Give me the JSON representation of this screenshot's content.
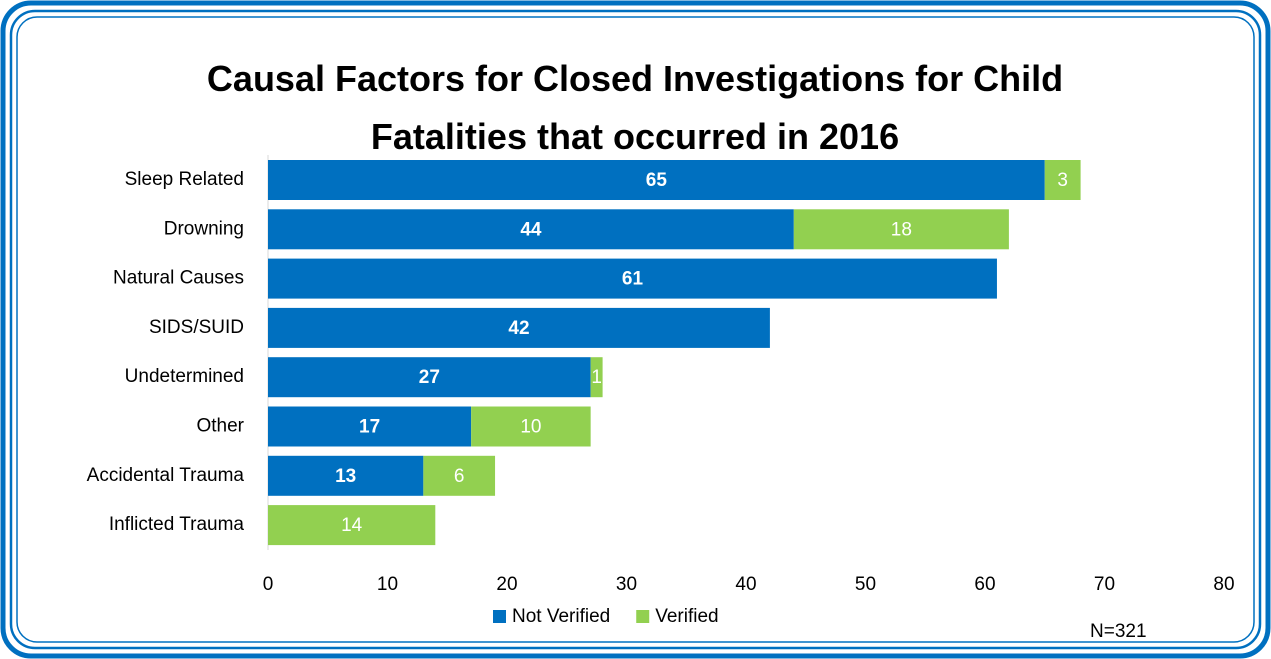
{
  "chart_data": {
    "type": "stacked_bar_horizontal",
    "title": "Causal Factors for Closed Investigations for Child Fatalities that occurred in 2016",
    "categories": [
      "Sleep Related",
      "Drowning",
      "Natural Causes",
      "SIDS/SUID",
      "Undetermined",
      "Other",
      "Accidental Trauma",
      "Inflicted Trauma"
    ],
    "series": [
      {
        "name": "Not Verified",
        "color": "#0070c0",
        "values": [
          65,
          44,
          61,
          42,
          27,
          17,
          13,
          null
        ]
      },
      {
        "name": "Verified",
        "color": "#92d050",
        "values": [
          3,
          18,
          null,
          null,
          1,
          10,
          6,
          14
        ]
      }
    ],
    "xlim": [
      0,
      80
    ],
    "xticks": [
      0,
      10,
      20,
      30,
      40,
      50,
      60,
      70,
      80
    ],
    "grid": false,
    "legend": "bottom",
    "annotation": "N=321"
  }
}
